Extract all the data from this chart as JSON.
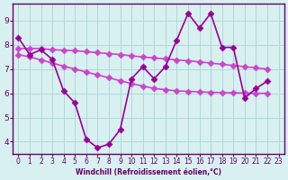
{
  "xlabel": "Windchill (Refroidissement éolien,°C)",
  "x": [
    0,
    1,
    2,
    3,
    4,
    5,
    6,
    7,
    8,
    9,
    10,
    11,
    12,
    13,
    14,
    15,
    16,
    17,
    18,
    19,
    20,
    21,
    22,
    23
  ],
  "y_main": [
    8.3,
    7.6,
    7.8,
    7.4,
    6.1,
    5.6,
    4.1,
    3.75,
    3.9,
    4.5,
    6.6,
    7.1,
    6.6,
    7.1,
    8.2,
    9.3,
    8.7,
    9.3,
    7.9,
    7.9,
    5.8,
    6.2,
    6.5,
    null
  ],
  "y_upper": [
    7.85,
    7.85,
    7.85,
    7.8,
    7.78,
    7.76,
    7.72,
    7.68,
    7.64,
    7.6,
    7.55,
    7.5,
    7.46,
    7.42,
    7.38,
    7.34,
    7.3,
    7.25,
    7.2,
    7.15,
    7.1,
    7.05,
    7.0,
    null
  ],
  "y_lower": [
    7.6,
    7.5,
    7.38,
    7.25,
    7.12,
    7.0,
    6.88,
    6.76,
    6.64,
    6.52,
    6.4,
    6.3,
    6.2,
    6.15,
    6.1,
    6.08,
    6.06,
    6.04,
    6.03,
    6.02,
    6.01,
    6.0,
    6.0,
    null
  ],
  "color_main": "#990099",
  "color_upper": "#cc44cc",
  "color_lower": "#cc44cc",
  "bg_color": "#d8f0f0",
  "grid_color": "#b0d8d8",
  "axis_color": "#660066",
  "ylim": [
    3.5,
    9.7
  ],
  "yticks": [
    4,
    5,
    6,
    7,
    8,
    9
  ],
  "xlim": [
    -0.5,
    23.5
  ],
  "xticks": [
    0,
    1,
    2,
    3,
    4,
    5,
    6,
    7,
    8,
    9,
    10,
    11,
    12,
    13,
    14,
    15,
    16,
    17,
    18,
    19,
    20,
    21,
    22,
    23
  ],
  "marker": "D",
  "markersize": 3.5,
  "linewidth": 1.2
}
